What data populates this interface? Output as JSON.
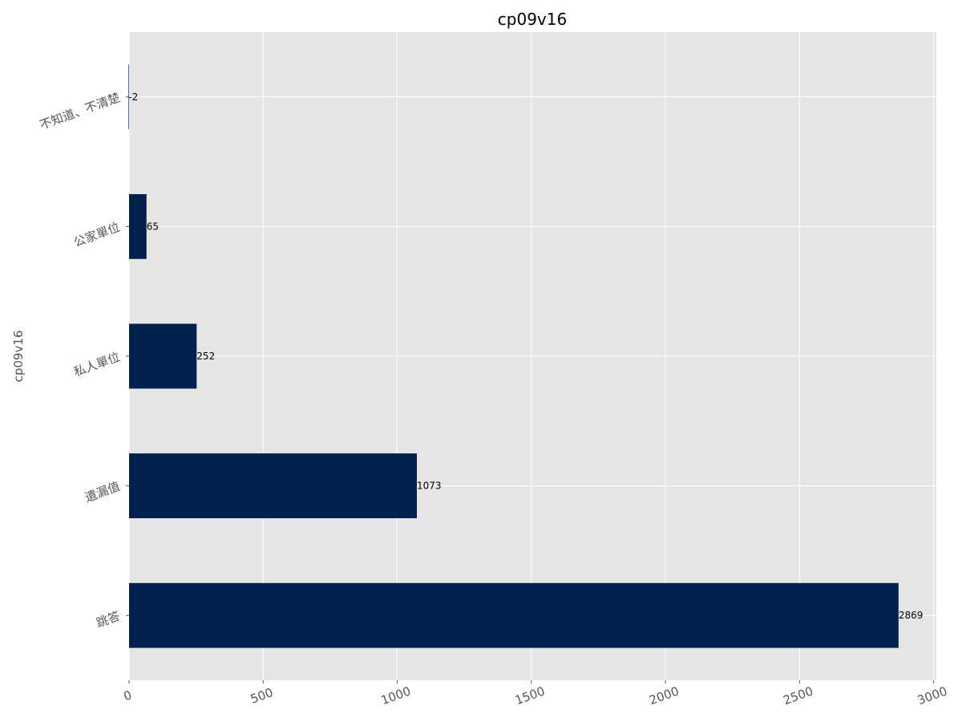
{
  "chart_data": {
    "type": "bar",
    "orientation": "horizontal",
    "title": "cp09v16",
    "xlabel": "",
    "ylabel": "cp09v16",
    "categories": [
      "跳答",
      "遺漏值",
      "私人單位",
      "公家單位",
      "不知道、不清楚"
    ],
    "values": [
      2869,
      1073,
      252,
      65,
      -2
    ],
    "data_labels": [
      "2869",
      "1073",
      "252",
      "65",
      "-2"
    ],
    "xlim": [
      0,
      3010
    ],
    "xticks": [
      0,
      500,
      1000,
      1500,
      2000,
      2500,
      3000
    ],
    "xtick_labels": [
      "0",
      "500",
      "1000",
      "1500",
      "2000",
      "2500",
      "3000"
    ],
    "grid": true,
    "bar_color": "#00204d",
    "background_color": "#e5e5e5",
    "grid_color": "#ffffff"
  }
}
